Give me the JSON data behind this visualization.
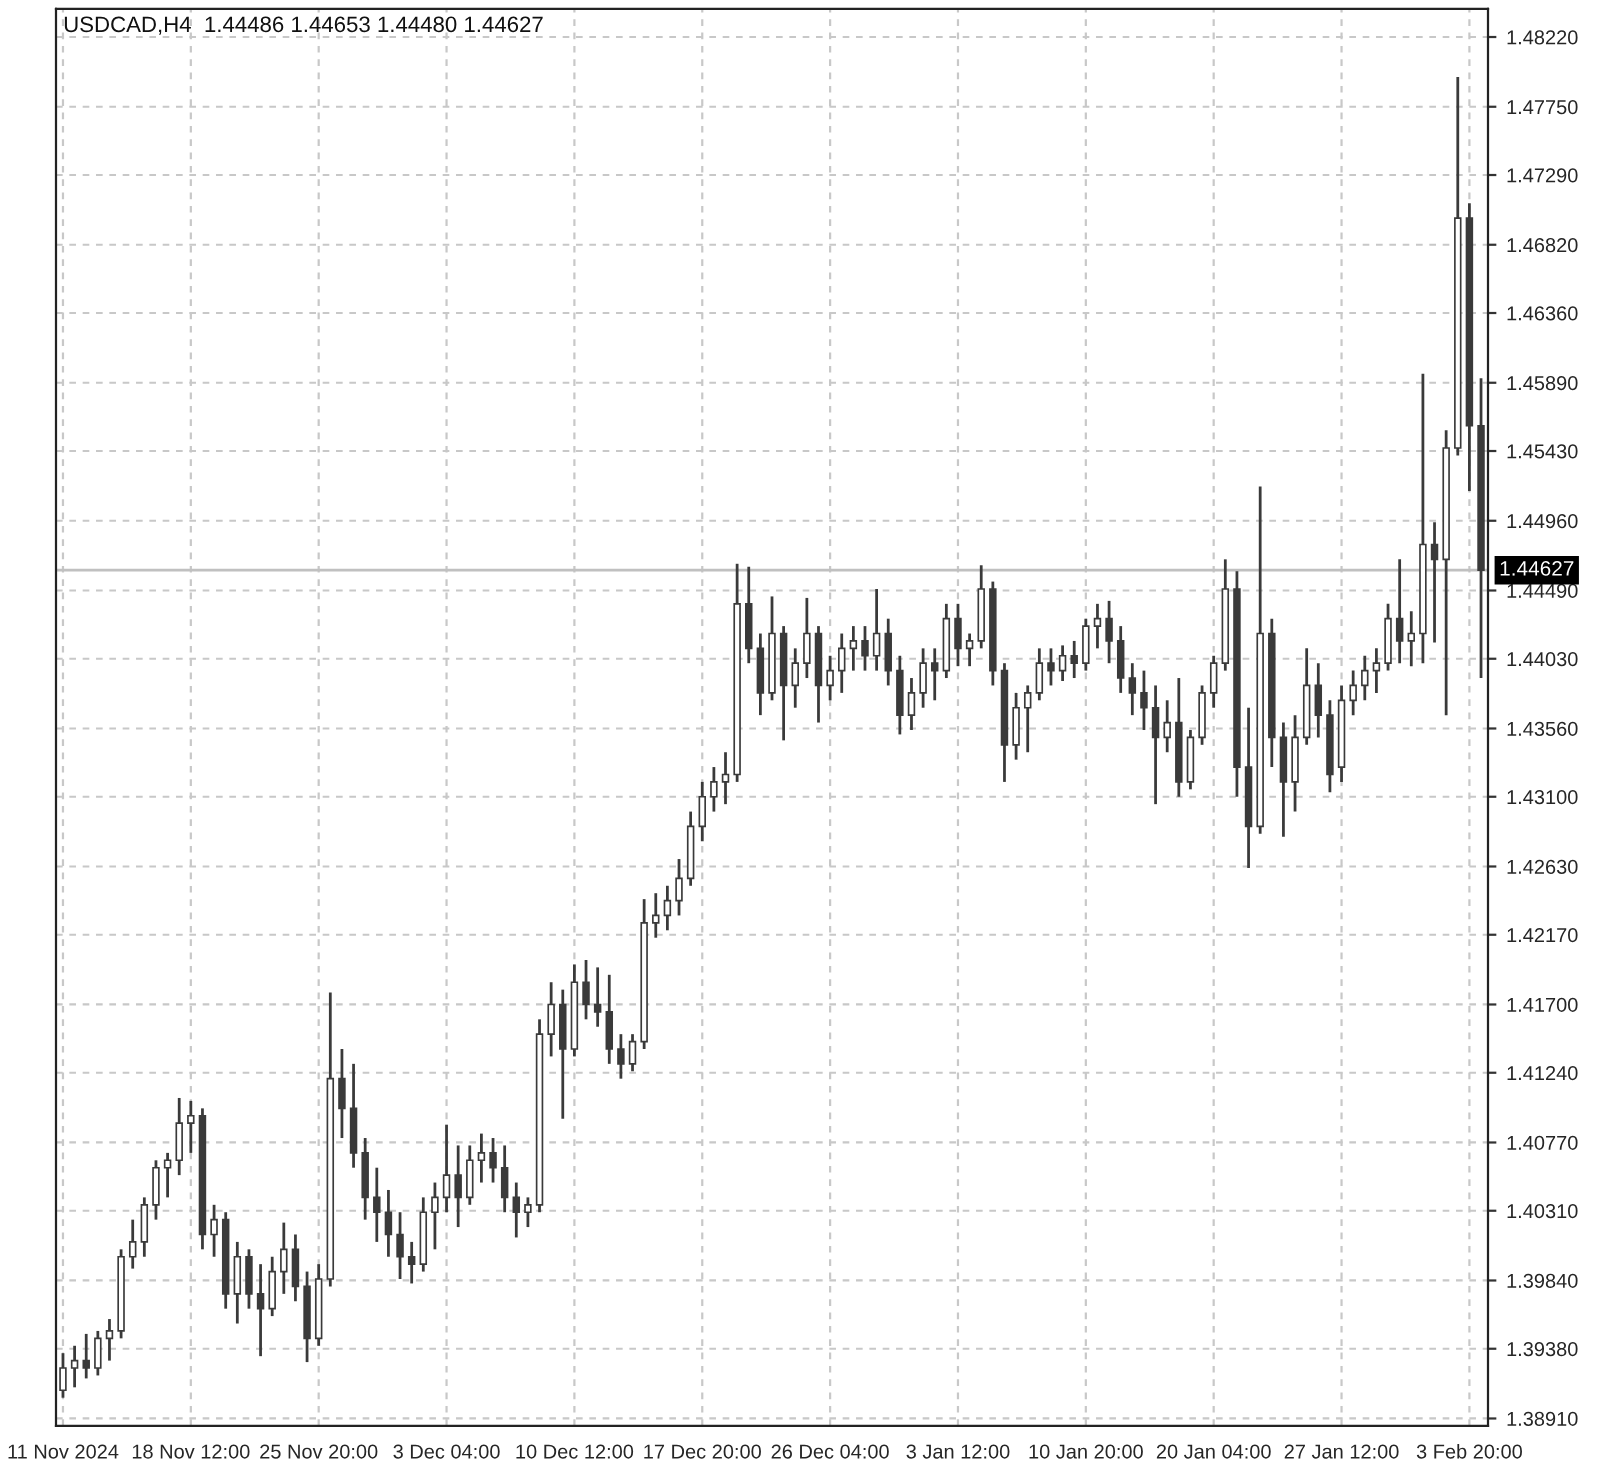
{
  "chart_data": {
    "type": "candlestick",
    "title": "USDCAD,H4  1.44486 1.44653 1.44480 1.44627",
    "color": "#3a3a3a",
    "grid": true,
    "categories": [
      "11 Nov 2024",
      null,
      null,
      null,
      null,
      null,
      null,
      null,
      null,
      null,
      null,
      "18 Nov 12:00",
      null,
      null,
      null,
      null,
      null,
      null,
      null,
      null,
      null,
      null,
      "25 Nov 20:00",
      null,
      null,
      null,
      null,
      null,
      null,
      null,
      null,
      null,
      null,
      "3 Dec 04:00",
      null,
      null,
      null,
      null,
      null,
      null,
      null,
      null,
      null,
      null,
      "10 Dec 12:00",
      null,
      null,
      null,
      null,
      null,
      null,
      null,
      null,
      null,
      null,
      "17 Dec 20:00",
      null,
      null,
      null,
      null,
      null,
      null,
      null,
      null,
      null,
      null,
      "26 Dec 04:00",
      null,
      null,
      null,
      null,
      null,
      null,
      null,
      null,
      null,
      null,
      "3 Jan 12:00",
      null,
      null,
      null,
      null,
      null,
      null,
      null,
      null,
      null,
      null,
      "10 Jan 20:00",
      null,
      null,
      null,
      null,
      null,
      null,
      null,
      null,
      null,
      null,
      "20 Jan 04:00",
      null,
      null,
      null,
      null,
      null,
      null,
      null,
      null,
      null,
      null,
      "27 Jan 12:00",
      null,
      null,
      null,
      null,
      null,
      null,
      null,
      null,
      null,
      null,
      "3 Feb 20:00",
      null
    ],
    "ohlc": [
      [
        1.391,
        1.3935,
        1.3905,
        1.3925
      ],
      [
        1.3925,
        1.394,
        1.3912,
        1.393
      ],
      [
        1.393,
        1.3948,
        1.3918,
        1.3925
      ],
      [
        1.3925,
        1.395,
        1.392,
        1.3945
      ],
      [
        1.3945,
        1.3958,
        1.393,
        1.395
      ],
      [
        1.395,
        1.4005,
        1.3945,
        1.4
      ],
      [
        1.4,
        1.4025,
        1.3992,
        1.401
      ],
      [
        1.401,
        1.404,
        1.4,
        1.4035
      ],
      [
        1.4035,
        1.4065,
        1.4025,
        1.406
      ],
      [
        1.406,
        1.407,
        1.404,
        1.4065
      ],
      [
        1.4065,
        1.4107,
        1.4055,
        1.409
      ],
      [
        1.409,
        1.4105,
        1.407,
        1.4095
      ],
      [
        1.4095,
        1.41,
        1.4005,
        1.4015
      ],
      [
        1.4015,
        1.4035,
        1.4,
        1.4025
      ],
      [
        1.4025,
        1.403,
        1.3965,
        1.3975
      ],
      [
        1.3975,
        1.401,
        1.3955,
        1.4
      ],
      [
        1.4,
        1.4005,
        1.3965,
        1.3975
      ],
      [
        1.3975,
        1.3995,
        1.3933,
        1.3965
      ],
      [
        1.3965,
        1.4,
        1.396,
        1.399
      ],
      [
        1.399,
        1.4023,
        1.3975,
        1.4005
      ],
      [
        1.4005,
        1.4015,
        1.397,
        1.398
      ],
      [
        1.398,
        1.399,
        1.3929,
        1.3945
      ],
      [
        1.3945,
        1.3995,
        1.394,
        1.3985
      ],
      [
        1.3985,
        1.4178,
        1.398,
        1.412
      ],
      [
        1.412,
        1.414,
        1.408,
        1.41
      ],
      [
        1.41,
        1.413,
        1.406,
        1.407
      ],
      [
        1.407,
        1.408,
        1.4025,
        1.404
      ],
      [
        1.404,
        1.406,
        1.401,
        1.403
      ],
      [
        1.403,
        1.4045,
        1.4,
        1.4015
      ],
      [
        1.4015,
        1.403,
        1.3985,
        1.4
      ],
      [
        1.4,
        1.401,
        1.3982,
        1.3995
      ],
      [
        1.3995,
        1.404,
        1.399,
        1.403
      ],
      [
        1.403,
        1.405,
        1.4005,
        1.404
      ],
      [
        1.404,
        1.4089,
        1.403,
        1.4055
      ],
      [
        1.4055,
        1.4075,
        1.402,
        1.404
      ],
      [
        1.404,
        1.4075,
        1.4035,
        1.4065
      ],
      [
        1.4065,
        1.4083,
        1.405,
        1.407
      ],
      [
        1.407,
        1.408,
        1.405,
        1.406
      ],
      [
        1.406,
        1.4075,
        1.403,
        1.404
      ],
      [
        1.404,
        1.405,
        1.4013,
        1.403
      ],
      [
        1.403,
        1.404,
        1.402,
        1.4035
      ],
      [
        1.4035,
        1.416,
        1.403,
        1.415
      ],
      [
        1.415,
        1.4185,
        1.4135,
        1.417
      ],
      [
        1.417,
        1.418,
        1.4093,
        1.414
      ],
      [
        1.414,
        1.4197,
        1.4135,
        1.4185
      ],
      [
        1.4185,
        1.42,
        1.416,
        1.417
      ],
      [
        1.417,
        1.4195,
        1.4155,
        1.4165
      ],
      [
        1.4165,
        1.419,
        1.413,
        1.414
      ],
      [
        1.414,
        1.415,
        1.412,
        1.413
      ],
      [
        1.413,
        1.415,
        1.4125,
        1.4145
      ],
      [
        1.4145,
        1.4241,
        1.414,
        1.4225
      ],
      [
        1.4225,
        1.4245,
        1.4215,
        1.423
      ],
      [
        1.423,
        1.425,
        1.422,
        1.424
      ],
      [
        1.424,
        1.4268,
        1.423,
        1.4255
      ],
      [
        1.4255,
        1.43,
        1.425,
        1.429
      ],
      [
        1.429,
        1.432,
        1.428,
        1.431
      ],
      [
        1.431,
        1.433,
        1.43,
        1.432
      ],
      [
        1.432,
        1.434,
        1.4305,
        1.4325
      ],
      [
        1.4325,
        1.4467,
        1.432,
        1.444
      ],
      [
        1.444,
        1.4465,
        1.44,
        1.441
      ],
      [
        1.441,
        1.442,
        1.4365,
        1.438
      ],
      [
        1.438,
        1.4445,
        1.4375,
        1.442
      ],
      [
        1.442,
        1.4425,
        1.4348,
        1.4385
      ],
      [
        1.4385,
        1.441,
        1.437,
        1.44
      ],
      [
        1.44,
        1.4444,
        1.439,
        1.442
      ],
      [
        1.442,
        1.4425,
        1.436,
        1.4385
      ],
      [
        1.4385,
        1.4405,
        1.4375,
        1.4395
      ],
      [
        1.4395,
        1.442,
        1.438,
        1.441
      ],
      [
        1.441,
        1.4425,
        1.4395,
        1.4415
      ],
      [
        1.4415,
        1.4425,
        1.4395,
        1.4405
      ],
      [
        1.4405,
        1.445,
        1.4395,
        1.442
      ],
      [
        1.442,
        1.443,
        1.4385,
        1.4395
      ],
      [
        1.4395,
        1.4405,
        1.4352,
        1.4365
      ],
      [
        1.4365,
        1.439,
        1.4355,
        1.438
      ],
      [
        1.438,
        1.441,
        1.437,
        1.44
      ],
      [
        1.44,
        1.441,
        1.4375,
        1.4395
      ],
      [
        1.4395,
        1.444,
        1.439,
        1.443
      ],
      [
        1.443,
        1.444,
        1.4398,
        1.441
      ],
      [
        1.441,
        1.442,
        1.4398,
        1.4415
      ],
      [
        1.4415,
        1.4466,
        1.441,
        1.445
      ],
      [
        1.445,
        1.4455,
        1.4385,
        1.4395
      ],
      [
        1.4395,
        1.44,
        1.432,
        1.4345
      ],
      [
        1.4345,
        1.438,
        1.4335,
        1.437
      ],
      [
        1.437,
        1.4385,
        1.434,
        1.438
      ],
      [
        1.438,
        1.441,
        1.4375,
        1.44
      ],
      [
        1.44,
        1.441,
        1.4385,
        1.4395
      ],
      [
        1.4395,
        1.4412,
        1.4388,
        1.4405
      ],
      [
        1.4405,
        1.4415,
        1.439,
        1.44
      ],
      [
        1.44,
        1.443,
        1.4395,
        1.4425
      ],
      [
        1.4425,
        1.444,
        1.441,
        1.443
      ],
      [
        1.443,
        1.4442,
        1.44,
        1.4415
      ],
      [
        1.4415,
        1.4425,
        1.438,
        1.439
      ],
      [
        1.439,
        1.44,
        1.4365,
        1.438
      ],
      [
        1.438,
        1.4395,
        1.4355,
        1.437
      ],
      [
        1.437,
        1.4385,
        1.4305,
        1.435
      ],
      [
        1.435,
        1.4375,
        1.434,
        1.436
      ],
      [
        1.436,
        1.439,
        1.431,
        1.432
      ],
      [
        1.432,
        1.4355,
        1.4315,
        1.435
      ],
      [
        1.435,
        1.4385,
        1.4345,
        1.438
      ],
      [
        1.438,
        1.4405,
        1.437,
        1.44
      ],
      [
        1.44,
        1.447,
        1.4395,
        1.445
      ],
      [
        1.445,
        1.4462,
        1.431,
        1.433
      ],
      [
        1.433,
        1.437,
        1.4262,
        1.429
      ],
      [
        1.429,
        1.4519,
        1.4285,
        1.442
      ],
      [
        1.442,
        1.443,
        1.433,
        1.435
      ],
      [
        1.435,
        1.436,
        1.4283,
        1.432
      ],
      [
        1.432,
        1.4365,
        1.43,
        1.435
      ],
      [
        1.435,
        1.441,
        1.4345,
        1.4385
      ],
      [
        1.4385,
        1.44,
        1.435,
        1.4365
      ],
      [
        1.4365,
        1.4375,
        1.4313,
        1.4325
      ],
      [
        1.433,
        1.4385,
        1.432,
        1.4375
      ],
      [
        1.4375,
        1.4395,
        1.4365,
        1.4385
      ],
      [
        1.4385,
        1.4405,
        1.4375,
        1.4395
      ],
      [
        1.4395,
        1.441,
        1.438,
        1.44
      ],
      [
        1.44,
        1.444,
        1.4395,
        1.443
      ],
      [
        1.443,
        1.447,
        1.44,
        1.4415
      ],
      [
        1.4415,
        1.4435,
        1.4398,
        1.442
      ],
      [
        1.442,
        1.4595,
        1.44,
        1.448
      ],
      [
        1.448,
        1.4495,
        1.4414,
        1.447
      ],
      [
        1.447,
        1.4557,
        1.4365,
        1.4545
      ],
      [
        1.4545,
        1.4795,
        1.454,
        1.47
      ],
      [
        1.47,
        1.471,
        1.4516,
        1.456
      ],
      [
        1.456,
        1.4592,
        1.439,
        1.44627
      ]
    ],
    "ylim": [
      1.3886,
      1.4841
    ],
    "yticks": [
      {
        "value": 1.3891,
        "label": "1.38910"
      },
      {
        "value": 1.3938,
        "label": "1.39380"
      },
      {
        "value": 1.3984,
        "label": "1.39840"
      },
      {
        "value": 1.4031,
        "label": "1.40310"
      },
      {
        "value": 1.4077,
        "label": "1.40770"
      },
      {
        "value": 1.4124,
        "label": "1.41240"
      },
      {
        "value": 1.417,
        "label": "1.41700"
      },
      {
        "value": 1.4217,
        "label": "1.42170"
      },
      {
        "value": 1.4263,
        "label": "1.42630"
      },
      {
        "value": 1.431,
        "label": "1.43100"
      },
      {
        "value": 1.4356,
        "label": "1.43560"
      },
      {
        "value": 1.4403,
        "label": "1.44030"
      },
      {
        "value": 1.4449,
        "label": "1.44490"
      },
      {
        "value": 1.4496,
        "label": "1.44960"
      },
      {
        "value": 1.4543,
        "label": "1.45430"
      },
      {
        "value": 1.4589,
        "label": "1.45890"
      },
      {
        "value": 1.4636,
        "label": "1.46360"
      },
      {
        "value": 1.4682,
        "label": "1.46820"
      },
      {
        "value": 1.4729,
        "label": "1.47290"
      },
      {
        "value": 1.4775,
        "label": "1.47750"
      },
      {
        "value": 1.4822,
        "label": "1.48220"
      }
    ],
    "ref_lines": [
      {
        "axis": "y",
        "value": 1.44627,
        "label": "1.44627",
        "color": "#c0c0c0"
      }
    ]
  }
}
